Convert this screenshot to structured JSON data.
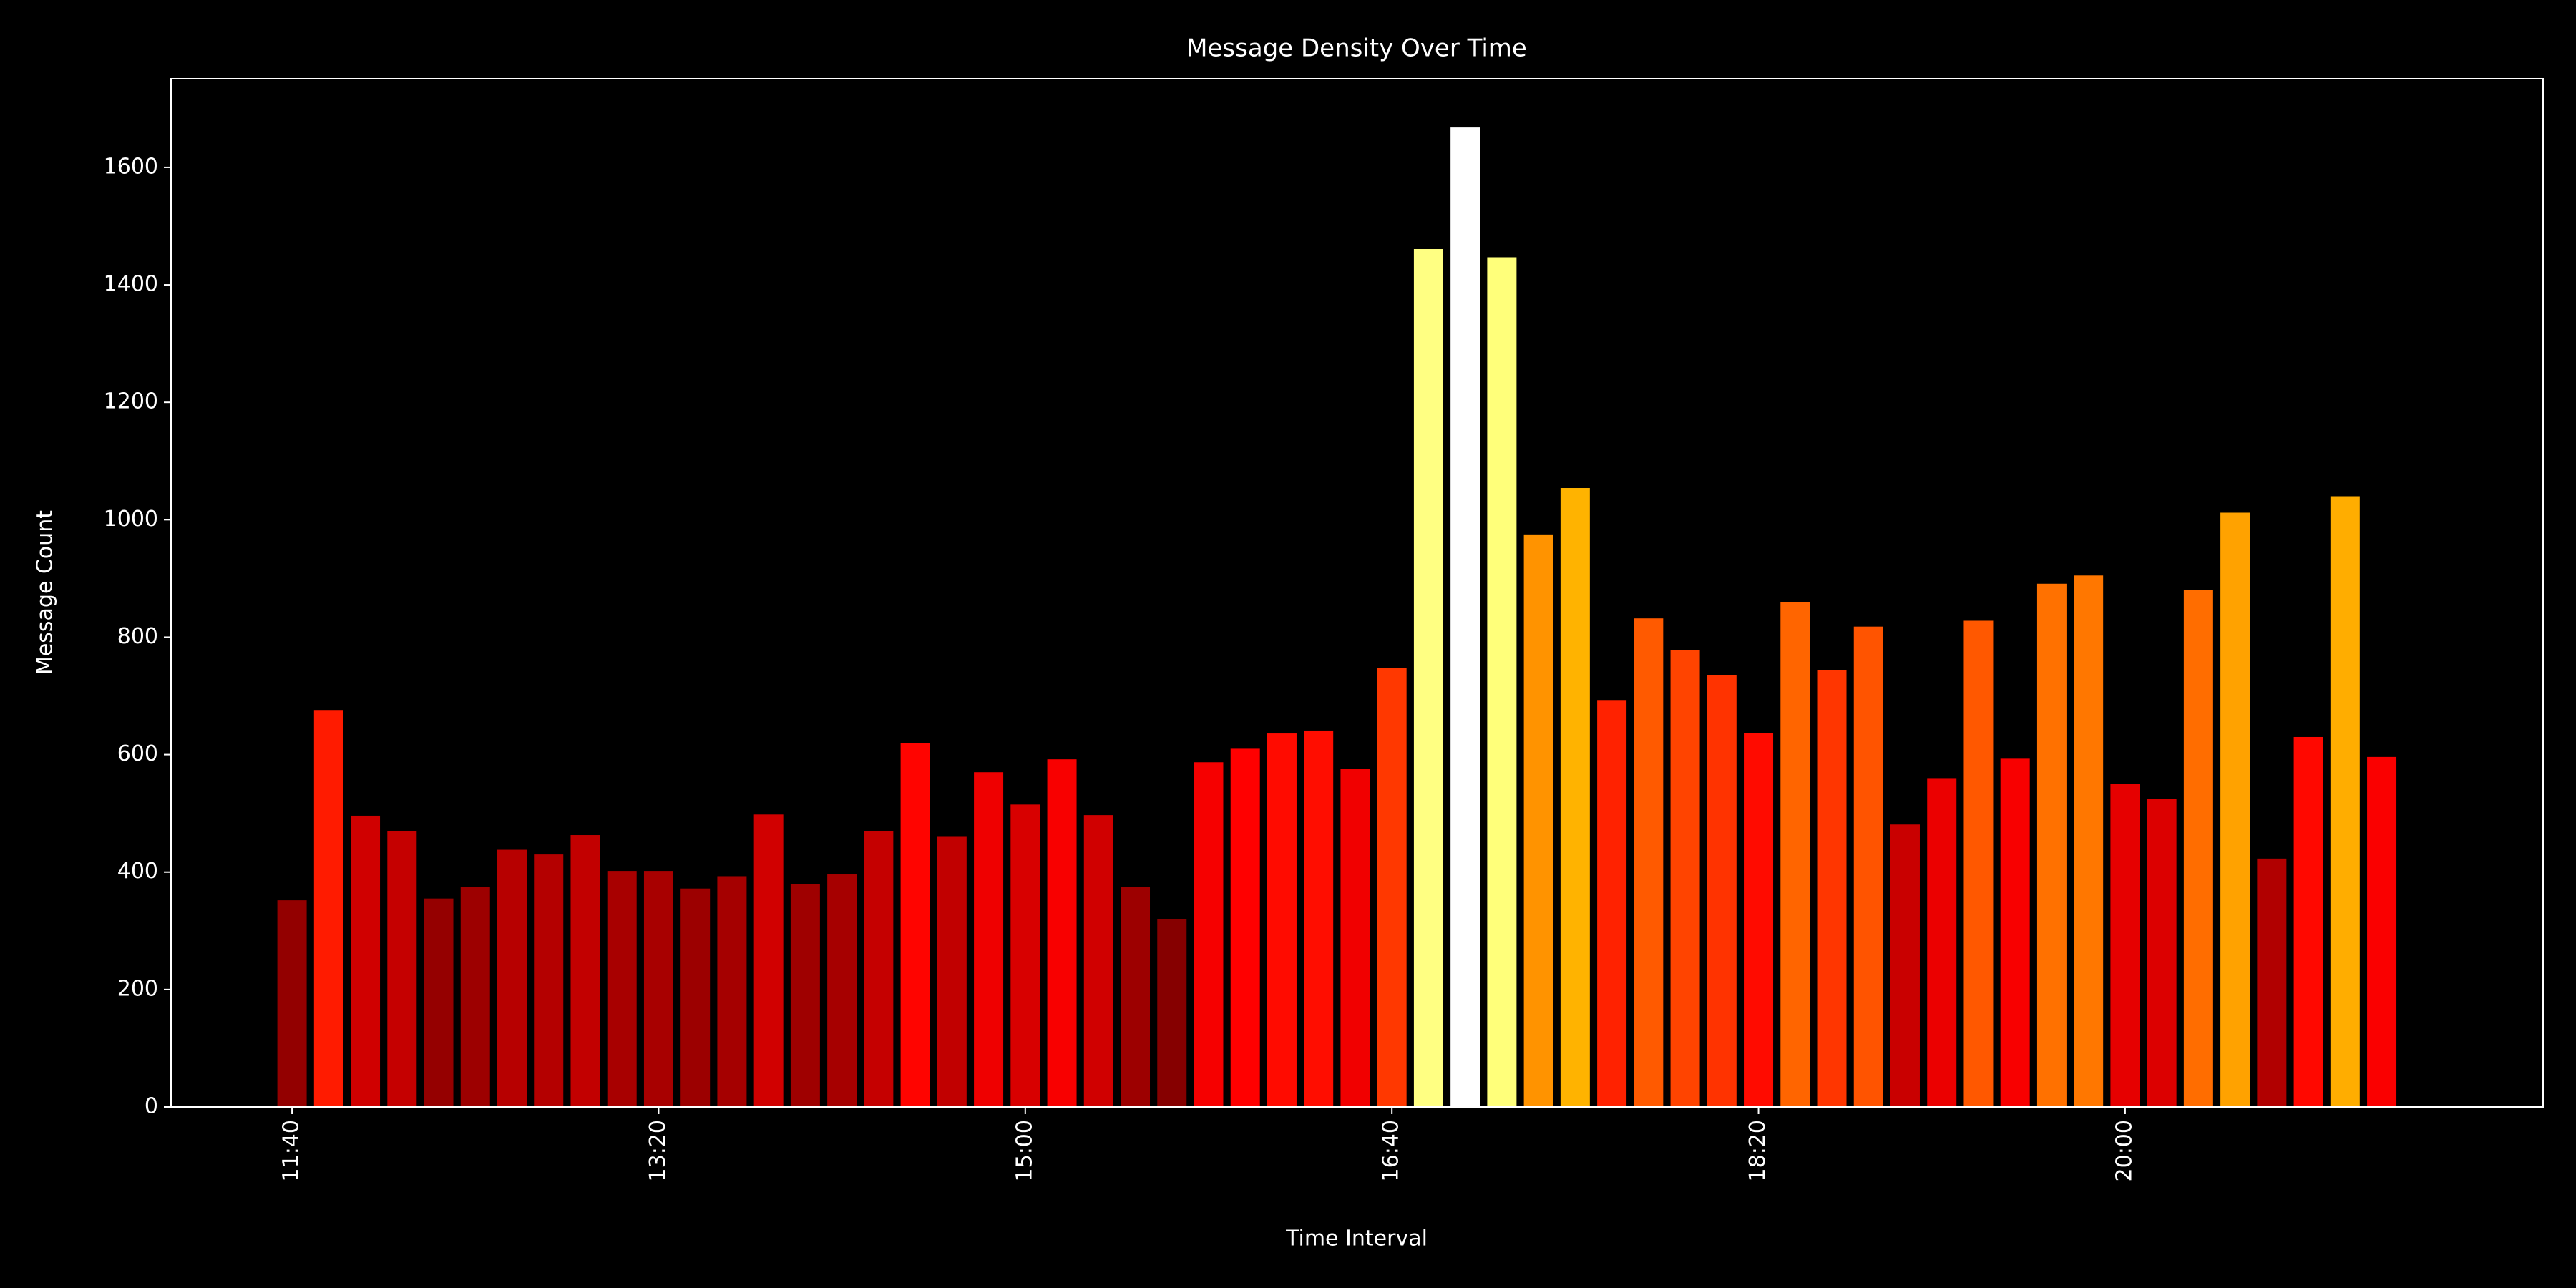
{
  "chart_data": {
    "type": "bar",
    "title": "Message Density Over Time",
    "x_label": "Time Interval",
    "y_label": "Message Count",
    "categories": [
      "11:40",
      null,
      null,
      null,
      null,
      null,
      null,
      null,
      null,
      null,
      "13:20",
      null,
      null,
      null,
      null,
      null,
      null,
      null,
      null,
      null,
      "15:00",
      null,
      null,
      null,
      null,
      null,
      null,
      null,
      null,
      null,
      "16:40",
      null,
      null,
      null,
      null,
      null,
      null,
      null,
      null,
      null,
      "18:20",
      null,
      null,
      null,
      null,
      null,
      null,
      null,
      null,
      null,
      "20:00",
      null,
      null,
      null,
      null,
      null,
      null,
      null
    ],
    "values": [
      352,
      676,
      496,
      470,
      355,
      375,
      438,
      430,
      463,
      402,
      402,
      372,
      393,
      498,
      380,
      396,
      470,
      619,
      460,
      570,
      515,
      592,
      497,
      375,
      320,
      587,
      610,
      636,
      641,
      576,
      748,
      1461,
      1668,
      1447,
      975,
      1054,
      693,
      832,
      778,
      735,
      637,
      860,
      744,
      818,
      481,
      560,
      828,
      593,
      891,
      905,
      550,
      525,
      880,
      1012,
      423,
      630,
      1040,
      596
    ],
    "colormap": "hot",
    "ylim": [
      0,
      1751
    ],
    "yticks": [
      0,
      200,
      400,
      600,
      800,
      1000,
      1200,
      1400,
      1600
    ]
  }
}
